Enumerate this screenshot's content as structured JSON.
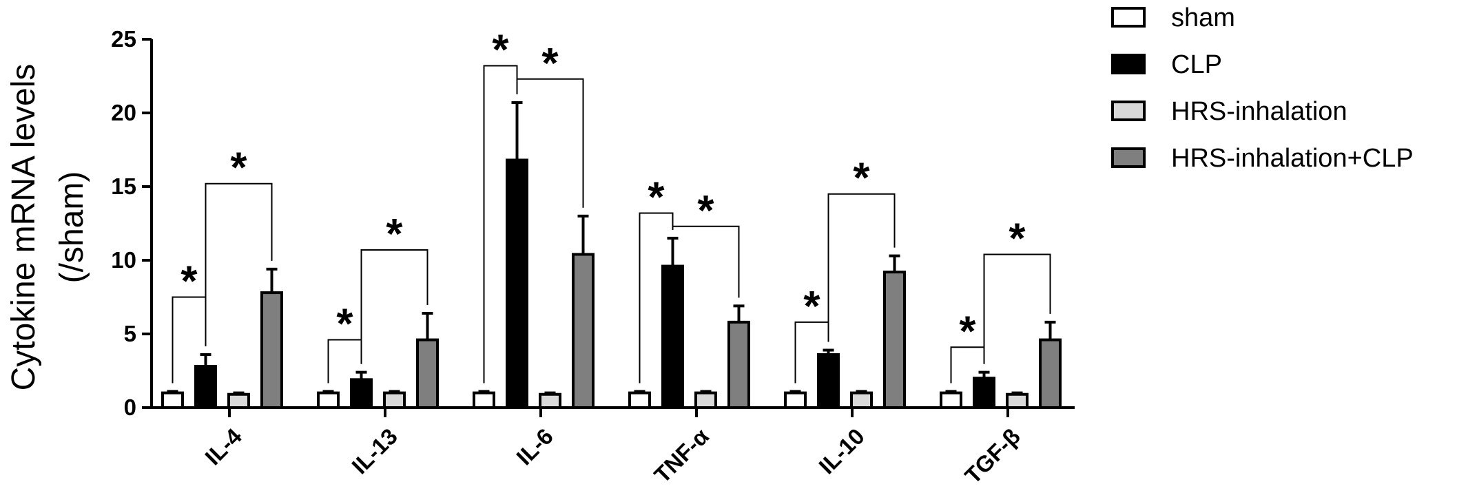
{
  "chart_data": {
    "type": "bar",
    "ylabel": [
      "Cytokine mRNA levels",
      "(/sham)"
    ],
    "xlabel": "",
    "ylim": [
      0,
      25
    ],
    "yticks": [
      0,
      5,
      10,
      15,
      20,
      25
    ],
    "legend_position": "top-right",
    "categories": [
      "IL-4",
      "IL-13",
      "IL-6",
      "TNF-α",
      "IL-10",
      "TGF-β"
    ],
    "series": [
      {
        "name": "sham",
        "color": "#ffffff",
        "values": [
          1.0,
          1.0,
          1.0,
          1.0,
          1.0,
          1.0
        ],
        "errors": [
          0.1,
          0.1,
          0.1,
          0.1,
          0.1,
          0.1
        ]
      },
      {
        "name": "CLP",
        "color": "#000000",
        "values": [
          2.8,
          1.9,
          16.8,
          9.6,
          3.6,
          2.0
        ],
        "errors": [
          0.8,
          0.5,
          3.9,
          1.9,
          0.3,
          0.4
        ]
      },
      {
        "name": "HRS-inhalation",
        "color": "#d9d9d9",
        "values": [
          0.9,
          1.0,
          0.9,
          1.0,
          1.0,
          0.9
        ],
        "errors": [
          0.1,
          0.1,
          0.1,
          0.1,
          0.1,
          0.1
        ]
      },
      {
        "name": "HRS-inhalation+CLP",
        "color": "#7f7f7f",
        "values": [
          7.8,
          4.6,
          10.4,
          5.8,
          9.2,
          4.6
        ],
        "errors": [
          1.6,
          1.8,
          2.6,
          1.1,
          1.1,
          1.2
        ]
      }
    ],
    "significance": [
      {
        "category": 0,
        "from": 0,
        "to": 1,
        "y": 7.5,
        "label": "*"
      },
      {
        "category": 0,
        "from": 1,
        "to": 3,
        "y": 15.2,
        "label": "*"
      },
      {
        "category": 1,
        "from": 0,
        "to": 1,
        "y": 4.6,
        "label": "*"
      },
      {
        "category": 1,
        "from": 1,
        "to": 3,
        "y": 10.7,
        "label": "*"
      },
      {
        "category": 2,
        "from": 0,
        "to": 1,
        "y": 23.2,
        "label": "*"
      },
      {
        "category": 2,
        "from": 1,
        "to": 3,
        "y": 22.3,
        "label": "*"
      },
      {
        "category": 3,
        "from": 0,
        "to": 1,
        "y": 13.2,
        "label": "*"
      },
      {
        "category": 3,
        "from": 1,
        "to": 3,
        "y": 12.3,
        "label": "*"
      },
      {
        "category": 4,
        "from": 0,
        "to": 1,
        "y": 5.8,
        "label": "*"
      },
      {
        "category": 4,
        "from": 1,
        "to": 3,
        "y": 14.5,
        "label": "*"
      },
      {
        "category": 5,
        "from": 0,
        "to": 1,
        "y": 4.1,
        "label": "*"
      },
      {
        "category": 5,
        "from": 1,
        "to": 3,
        "y": 10.4,
        "label": "*"
      }
    ]
  }
}
